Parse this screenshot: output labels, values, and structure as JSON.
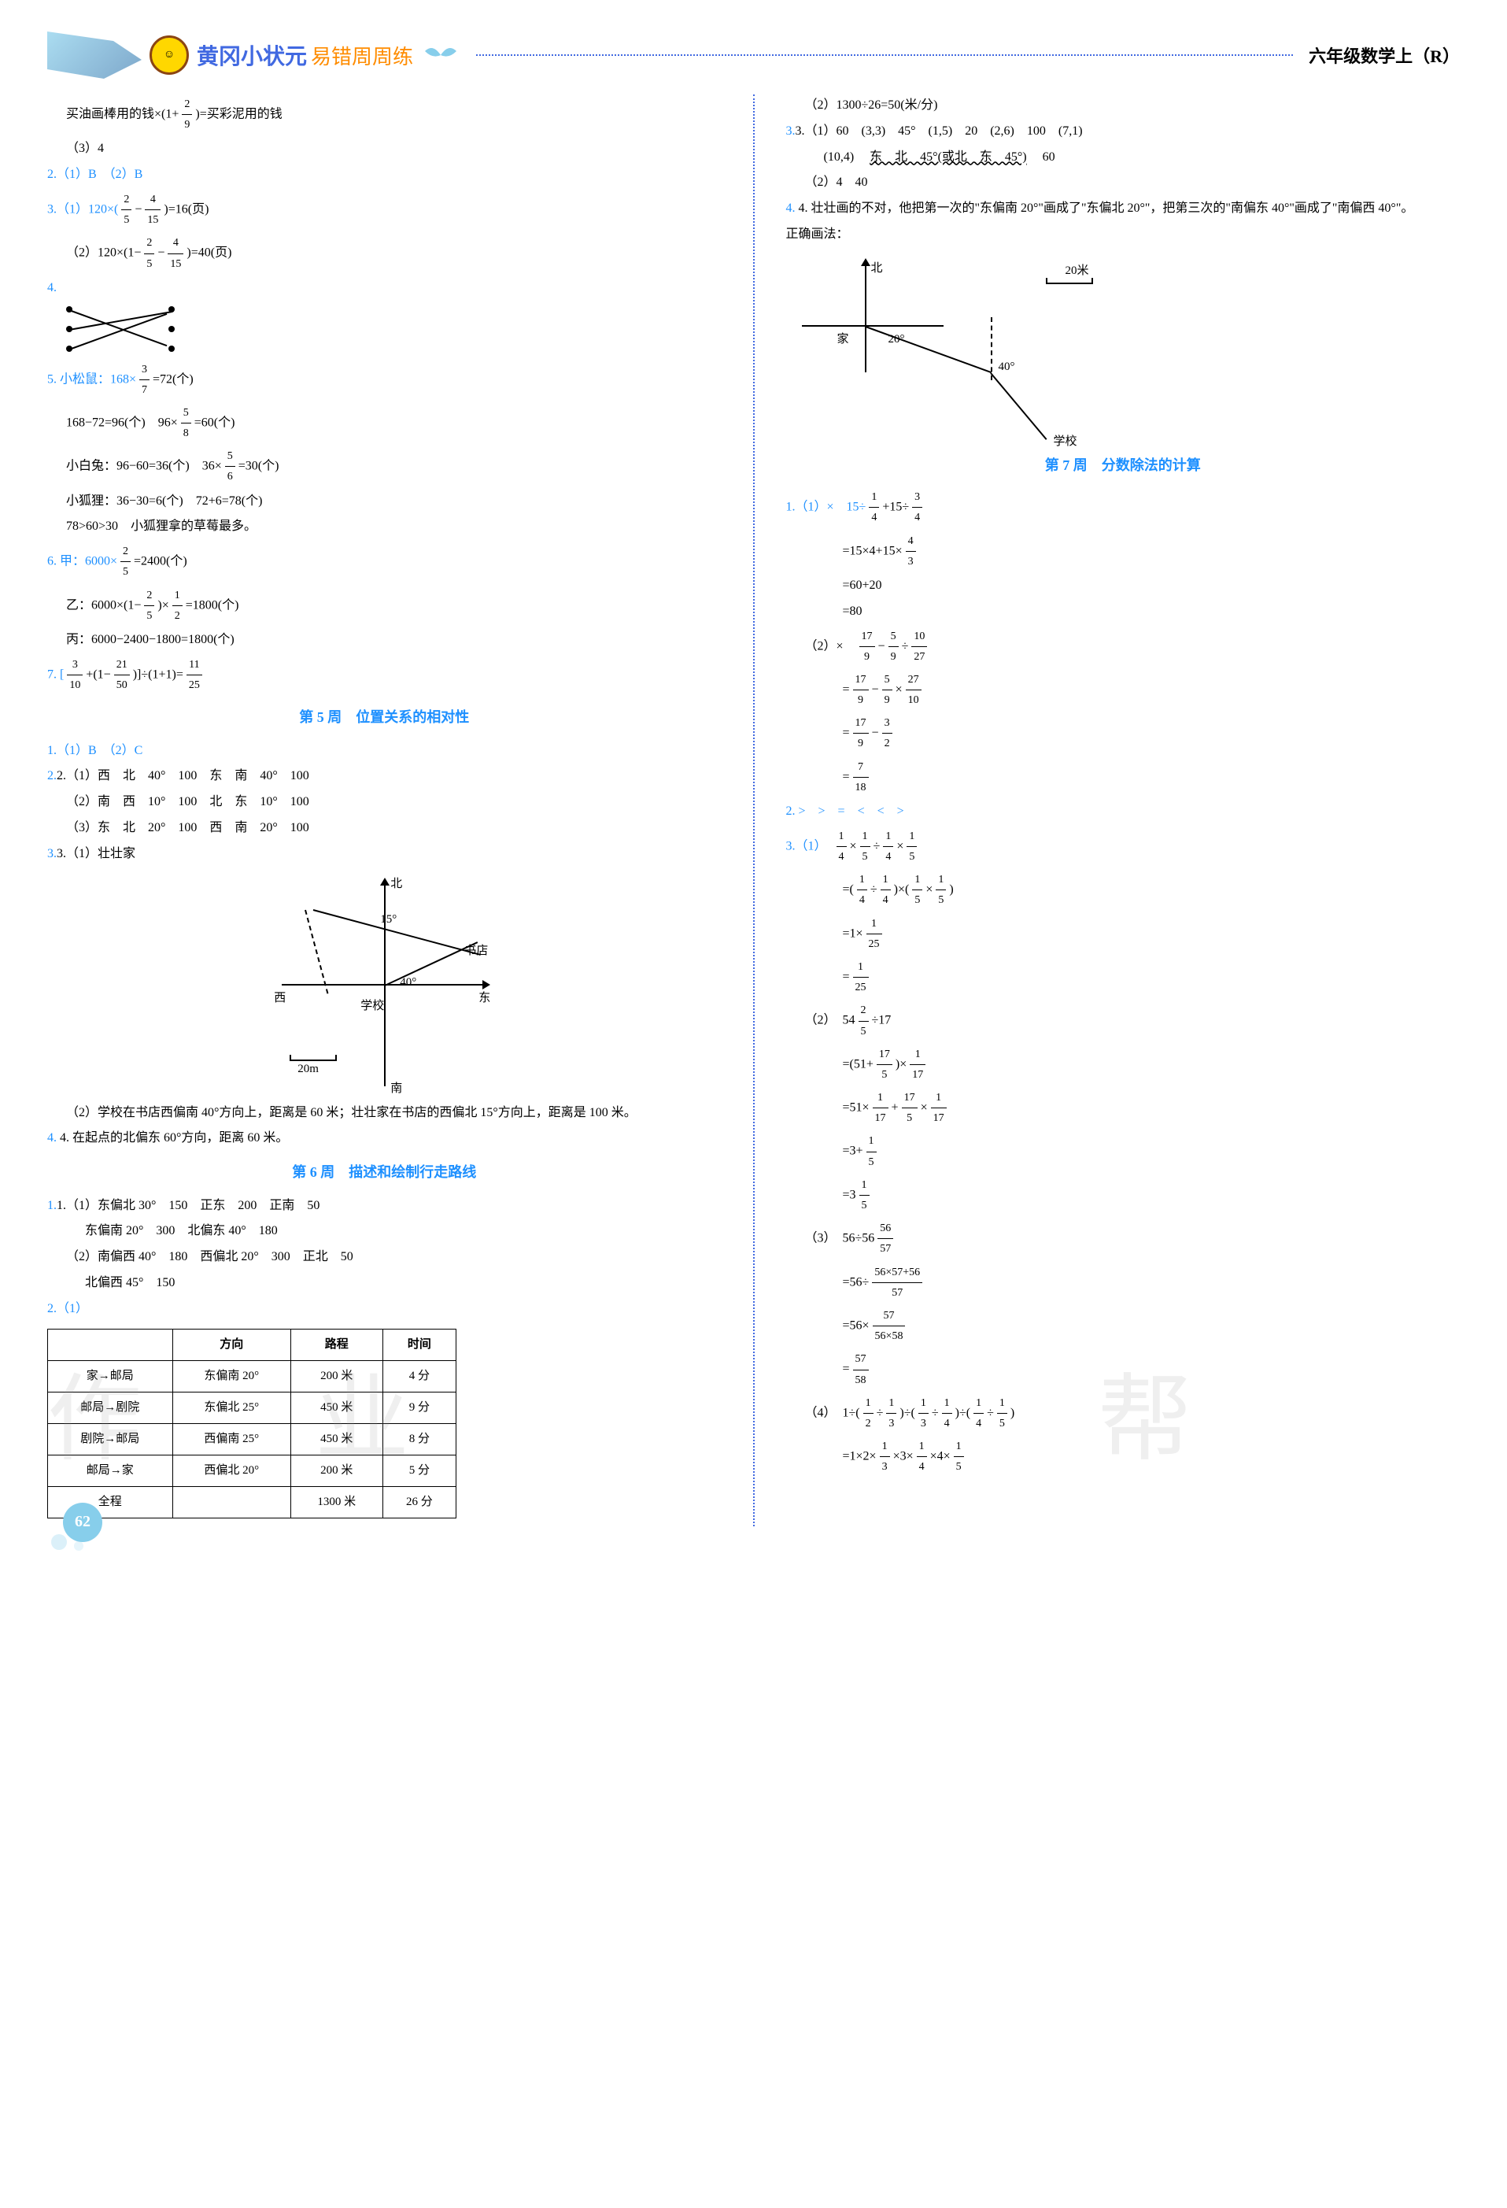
{
  "header": {
    "title_main": "黄冈小状元",
    "title_sub": "易错周周练",
    "grade": "六年级数学上（R）"
  },
  "left_column": {
    "intro_line": "买油画棒用的钱×(1+",
    "intro_frac": {
      "num": "2",
      "den": "9"
    },
    "intro_tail": ")=买彩泥用的钱",
    "l_1_3": "（3）4",
    "q2": "2.（1）B　（2）B",
    "q3_1_pre": "3.（1）120×(",
    "q3_1_f1": {
      "num": "2",
      "den": "5"
    },
    "q3_1_mid": "−",
    "q3_1_f2": {
      "num": "4",
      "den": "15"
    },
    "q3_1_tail": ")=16(页)",
    "q3_2_pre": "（2）120×(1−",
    "q3_2_f1": {
      "num": "2",
      "den": "5"
    },
    "q3_2_mid": "−",
    "q3_2_f2": {
      "num": "4",
      "den": "15"
    },
    "q3_2_tail": ")=40(页)",
    "q4_label": "4.",
    "q5_pre": "5. 小松鼠：168×",
    "q5_f1": {
      "num": "3",
      "den": "7"
    },
    "q5_tail": "=72(个)",
    "q5_l2a": "168−72=96(个)　96×",
    "q5_l2f": {
      "num": "5",
      "den": "8"
    },
    "q5_l2b": "=60(个)",
    "q5_l3a": "小白兔：96−60=36(个)　36×",
    "q5_l3f": {
      "num": "5",
      "den": "6"
    },
    "q5_l3b": "=30(个)",
    "q5_l4": "小狐狸：36−30=6(个)　72+6=78(个)",
    "q5_l5": "78>60>30　小狐狸拿的草莓最多。",
    "q6_pre": "6. 甲：6000×",
    "q6_f1": {
      "num": "2",
      "den": "5"
    },
    "q6_tail": "=2400(个)",
    "q6_l2a": "乙：6000×(1−",
    "q6_l2f": {
      "num": "2",
      "den": "5"
    },
    "q6_l2b": ")×",
    "q6_l2f2": {
      "num": "1",
      "den": "2"
    },
    "q6_l2c": "=1800(个)",
    "q6_l3": "丙：6000−2400−1800=1800(个)",
    "q7_pre": "7. [",
    "q7_f1": {
      "num": "3",
      "den": "10"
    },
    "q7_mid1": "+(1−",
    "q7_f2": {
      "num": "21",
      "den": "50"
    },
    "q7_mid2": ")]÷(1+1)=",
    "q7_f3": {
      "num": "11",
      "den": "25"
    },
    "sec5_title": "第 5 周　位置关系的相对性",
    "s5_q1": "1.（1）B　（2）C",
    "s5_q2_1": "2.（1）西　北　40°　100　东　南　40°　100",
    "s5_q2_2": "（2）南　西　10°　100　北　东　10°　100",
    "s5_q2_3": "（3）东　北　20°　100　西　南　20°　100",
    "s5_q3_1": "3.（1）壮壮家",
    "compass": {
      "north": "北",
      "east": "东",
      "west": "西",
      "south": "南",
      "school": "学校",
      "bookstore": "书店",
      "angle1": "15°",
      "angle2": "40°",
      "scale": "20m"
    },
    "s5_q3_2": "（2）学校在书店西偏南 40°方向上，距离是 60 米；壮壮家在书店的西偏北 15°方向上，距离是 100 米。",
    "s5_q4": "4. 在起点的北偏东 60°方向，距离 60 米。",
    "sec6_title": "第 6 周　描述和绘制行走路线",
    "s6_q1_1": "1.（1）东偏北 30°　150　正东　200　正南　50",
    "s6_q1_1b": "东偏南 20°　300　北偏东 40°　180",
    "s6_q1_2": "（2）南偏西 40°　180　西偏北 20°　300　正北　50",
    "s6_q1_2b": "北偏西 45°　150",
    "s6_q2": "2.（1）",
    "table": {
      "headers": [
        "",
        "方向",
        "路程",
        "时间"
      ],
      "rows": [
        [
          "家→邮局",
          "东偏南 20°",
          "200 米",
          "4 分"
        ],
        [
          "邮局→剧院",
          "东偏北 25°",
          "450 米",
          "9 分"
        ],
        [
          "剧院→邮局",
          "西偏南 25°",
          "450 米",
          "8 分"
        ],
        [
          "邮局→家",
          "西偏北 20°",
          "200 米",
          "5 分"
        ],
        [
          "全程",
          "",
          "1300 米",
          "26 分"
        ]
      ]
    }
  },
  "right_column": {
    "r_l1": "（2）1300÷26=50(米/分)",
    "r_q3_1": "3.（1）60　(3,3)　45°　(1,5)　20　(2,6)　100　(7,1)",
    "r_q3_1b_pre": "(10,4)　",
    "r_q3_1b_wavy": "东　北　45°(或北　东　45°)",
    "r_q3_1b_tail": "　60",
    "r_q3_2": "（2）4　40",
    "r_q4": "4. 壮壮画的不对，他把第一次的\"东偏南 20°\"画成了\"东偏北 20°\"，把第三次的\"南偏东 40°\"画成了\"南偏西 40°\"。",
    "r_correct": "正确画法：",
    "map": {
      "north": "北",
      "home": "家",
      "school": "学校",
      "angle1": "20°",
      "angle2": "40°",
      "scale": "20米"
    },
    "sec7_title": "第 7 周　分数除法的计算",
    "s7_q1_1_pre": "1.（1）×　15÷",
    "s7_q1_1_f1": {
      "num": "1",
      "den": "4"
    },
    "s7_q1_1_mid": "+15÷",
    "s7_q1_1_f2": {
      "num": "3",
      "den": "4"
    },
    "s7_q1_1_l2a": "=15×4+15×",
    "s7_q1_1_l2f": {
      "num": "4",
      "den": "3"
    },
    "s7_q1_1_l3": "=60+20",
    "s7_q1_1_l4": "=80",
    "s7_q1_2_pre": "（2）×　",
    "s7_q1_2_f1": {
      "num": "17",
      "den": "9"
    },
    "s7_q1_2_m1": "−",
    "s7_q1_2_f2": {
      "num": "5",
      "den": "9"
    },
    "s7_q1_2_m2": "÷",
    "s7_q1_2_f3": {
      "num": "10",
      "den": "27"
    },
    "s7_q1_2_l2a": "=",
    "s7_q1_2_l2f1": {
      "num": "17",
      "den": "9"
    },
    "s7_q1_2_l2m": "−",
    "s7_q1_2_l2f2": {
      "num": "5",
      "den": "9"
    },
    "s7_q1_2_l2m2": "×",
    "s7_q1_2_l2f3": {
      "num": "27",
      "den": "10"
    },
    "s7_q1_2_l3a": "=",
    "s7_q1_2_l3f1": {
      "num": "17",
      "den": "9"
    },
    "s7_q1_2_l3m": "−",
    "s7_q1_2_l3f2": {
      "num": "3",
      "den": "2"
    },
    "s7_q1_2_l4a": "=",
    "s7_q1_2_l4f": {
      "num": "7",
      "den": "18"
    },
    "s7_q2": "2. >　>　=　<　<　>",
    "s7_q3_1_pre": "3.（1）　",
    "s7_q3_1_f1": {
      "num": "1",
      "den": "4"
    },
    "s7_q3_1_m1": "×",
    "s7_q3_1_f2": {
      "num": "1",
      "den": "5"
    },
    "s7_q3_1_m2": "÷",
    "s7_q3_1_f3": {
      "num": "1",
      "den": "4"
    },
    "s7_q3_1_m3": "×",
    "s7_q3_1_f4": {
      "num": "1",
      "den": "5"
    },
    "s7_q3_1_l2a": "=(",
    "s7_q3_1_l2f1": {
      "num": "1",
      "den": "4"
    },
    "s7_q3_1_l2m1": "÷",
    "s7_q3_1_l2f2": {
      "num": "1",
      "den": "4"
    },
    "s7_q3_1_l2m2": ")×(",
    "s7_q3_1_l2f3": {
      "num": "1",
      "den": "5"
    },
    "s7_q3_1_l2m3": "×",
    "s7_q3_1_l2f4": {
      "num": "1",
      "den": "5"
    },
    "s7_q3_1_l2b": ")",
    "s7_q3_1_l3a": "=1×",
    "s7_q3_1_l3f": {
      "num": "1",
      "den": "25"
    },
    "s7_q3_1_l4a": "=",
    "s7_q3_1_l4f": {
      "num": "1",
      "den": "25"
    },
    "s7_q3_2_pre": "（2）　54",
    "s7_q3_2_f1": {
      "num": "2",
      "den": "5"
    },
    "s7_q3_2_tail": "÷17",
    "s7_q3_2_l2a": "=(51+",
    "s7_q3_2_l2f": {
      "num": "17",
      "den": "5"
    },
    "s7_q3_2_l2b": ")×",
    "s7_q3_2_l2f2": {
      "num": "1",
      "den": "17"
    },
    "s7_q3_2_l3a": "=51×",
    "s7_q3_2_l3f1": {
      "num": "1",
      "den": "17"
    },
    "s7_q3_2_l3m": "+",
    "s7_q3_2_l3f2": {
      "num": "17",
      "den": "5"
    },
    "s7_q3_2_l3m2": "×",
    "s7_q3_2_l3f3": {
      "num": "1",
      "den": "17"
    },
    "s7_q3_2_l4a": "=3+",
    "s7_q3_2_l4f": {
      "num": "1",
      "den": "5"
    },
    "s7_q3_2_l5a": "=3",
    "s7_q3_2_l5f": {
      "num": "1",
      "den": "5"
    },
    "s7_q3_3_pre": "（3）　56÷56",
    "s7_q3_3_f1": {
      "num": "56",
      "den": "57"
    },
    "s7_q3_3_l2a": "=56÷",
    "s7_q3_3_l2f": {
      "num": "56×57+56",
      "den": "57"
    },
    "s7_q3_3_l3a": "=56×",
    "s7_q3_3_l3f": {
      "num": "57",
      "den": "56×58"
    },
    "s7_q3_3_l4a": "=",
    "s7_q3_3_l4f": {
      "num": "57",
      "den": "58"
    },
    "s7_q3_4_pre": "（4）　1÷(",
    "s7_q3_4_f1": {
      "num": "1",
      "den": "2"
    },
    "s7_q3_4_m1": "÷",
    "s7_q3_4_f2": {
      "num": "1",
      "den": "3"
    },
    "s7_q3_4_m2": ")÷(",
    "s7_q3_4_f3": {
      "num": "1",
      "den": "3"
    },
    "s7_q3_4_m3": "÷",
    "s7_q3_4_f4": {
      "num": "1",
      "den": "4"
    },
    "s7_q3_4_m4": ")÷(",
    "s7_q3_4_f5": {
      "num": "1",
      "den": "4"
    },
    "s7_q3_4_m5": "÷",
    "s7_q3_4_f6": {
      "num": "1",
      "den": "5"
    },
    "s7_q3_4_m6": ")",
    "s7_q3_4_l2a": "=1×2×",
    "s7_q3_4_l2f1": {
      "num": "1",
      "den": "3"
    },
    "s7_q3_4_l2m1": "×3×",
    "s7_q3_4_l2f2": {
      "num": "1",
      "den": "4"
    },
    "s7_q3_4_l2m2": "×4×",
    "s7_q3_4_l2f3": {
      "num": "1",
      "den": "5"
    }
  },
  "page_number": "62"
}
